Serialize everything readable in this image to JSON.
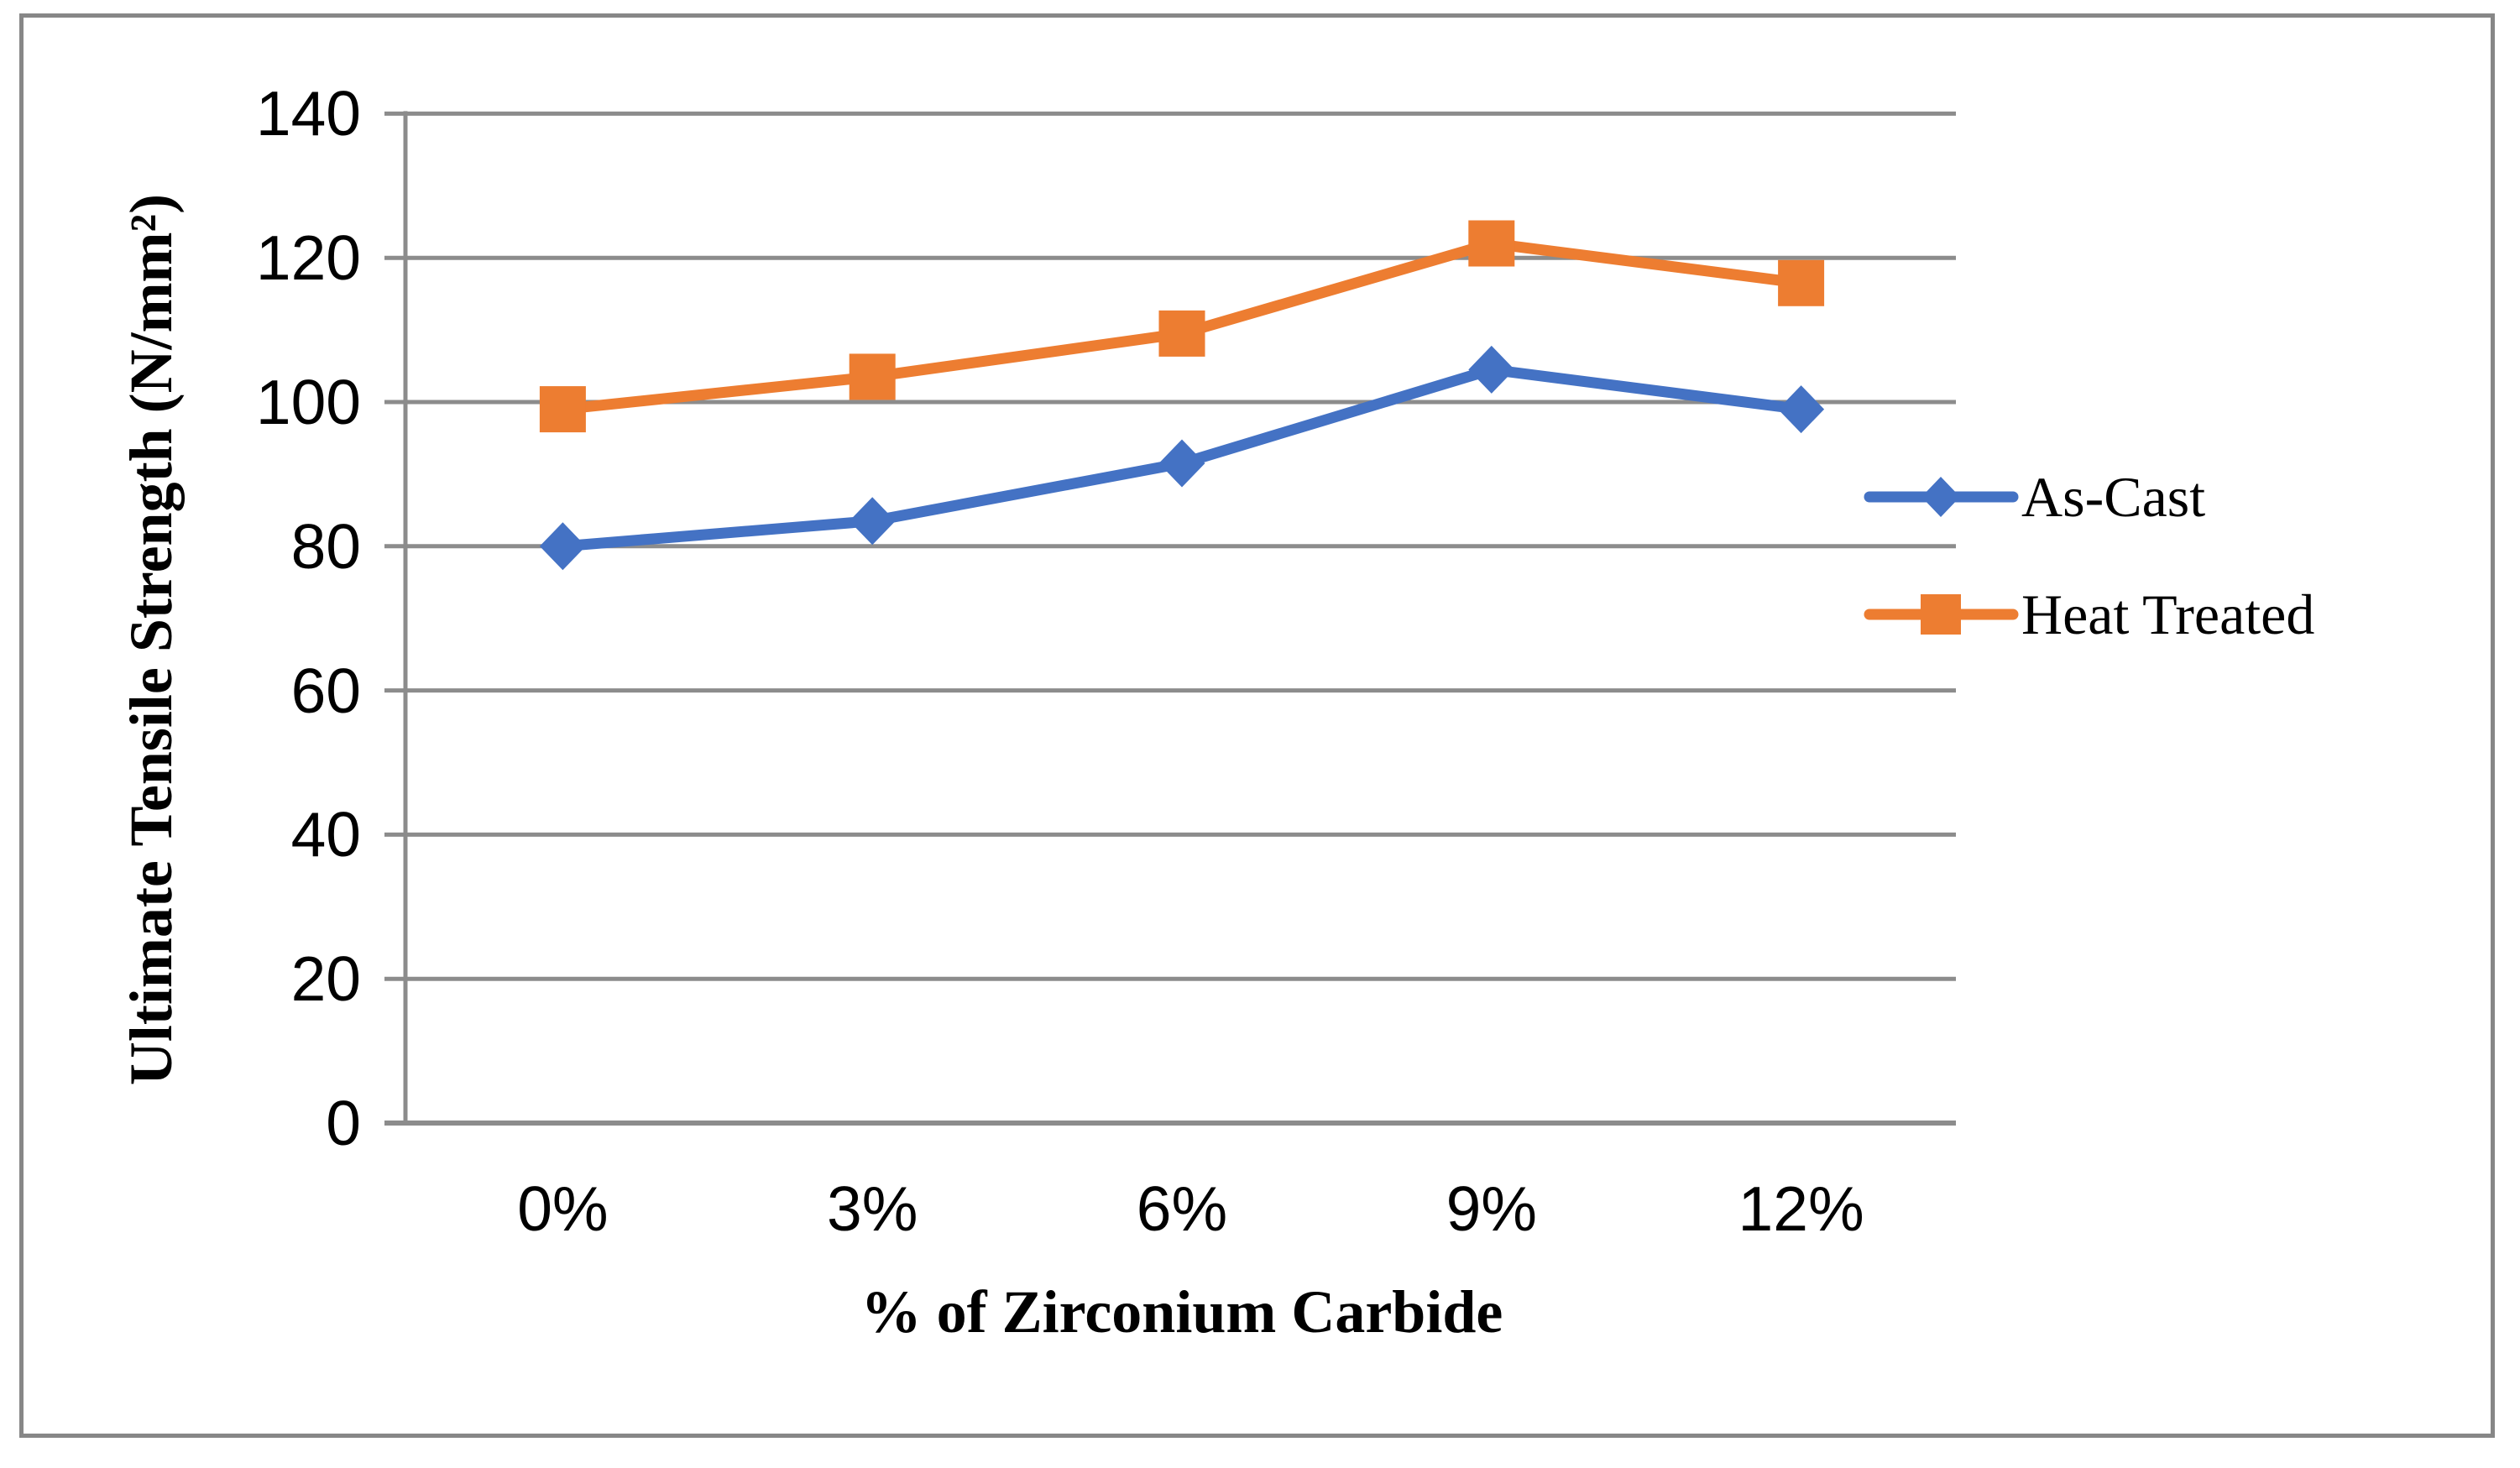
{
  "figure": {
    "background_color": "#FFFFFF",
    "frame_color": "#878787"
  },
  "chart_data": {
    "type": "line",
    "categories": [
      "0%",
      "3%",
      "6%",
      "9%",
      "12%"
    ],
    "series": [
      {
        "name": "As-Cast",
        "color": "#4472C4",
        "marker": "diamond",
        "values": [
          80,
          83.5,
          91.5,
          104.5,
          99
        ]
      },
      {
        "name": "Heat Treated",
        "color": "#ED7D31",
        "marker": "square",
        "values": [
          99,
          103.5,
          109.5,
          122,
          116.5
        ]
      }
    ],
    "title": "",
    "xlabel": "% of Zirconium Carbide",
    "ylabel": "Ultimate Tensile Strength (N/mm²)",
    "ylim": [
      0,
      140
    ],
    "yticks": [
      0,
      20,
      40,
      60,
      80,
      100,
      120,
      140
    ],
    "ytick_labels": [
      "0",
      "20",
      "40",
      "60",
      "80",
      "100",
      "120",
      "140"
    ],
    "grid": true,
    "gridline_color": "#8C8C8C",
    "axis_color": "#8C8C8C",
    "legend_position": "right-middle"
  }
}
